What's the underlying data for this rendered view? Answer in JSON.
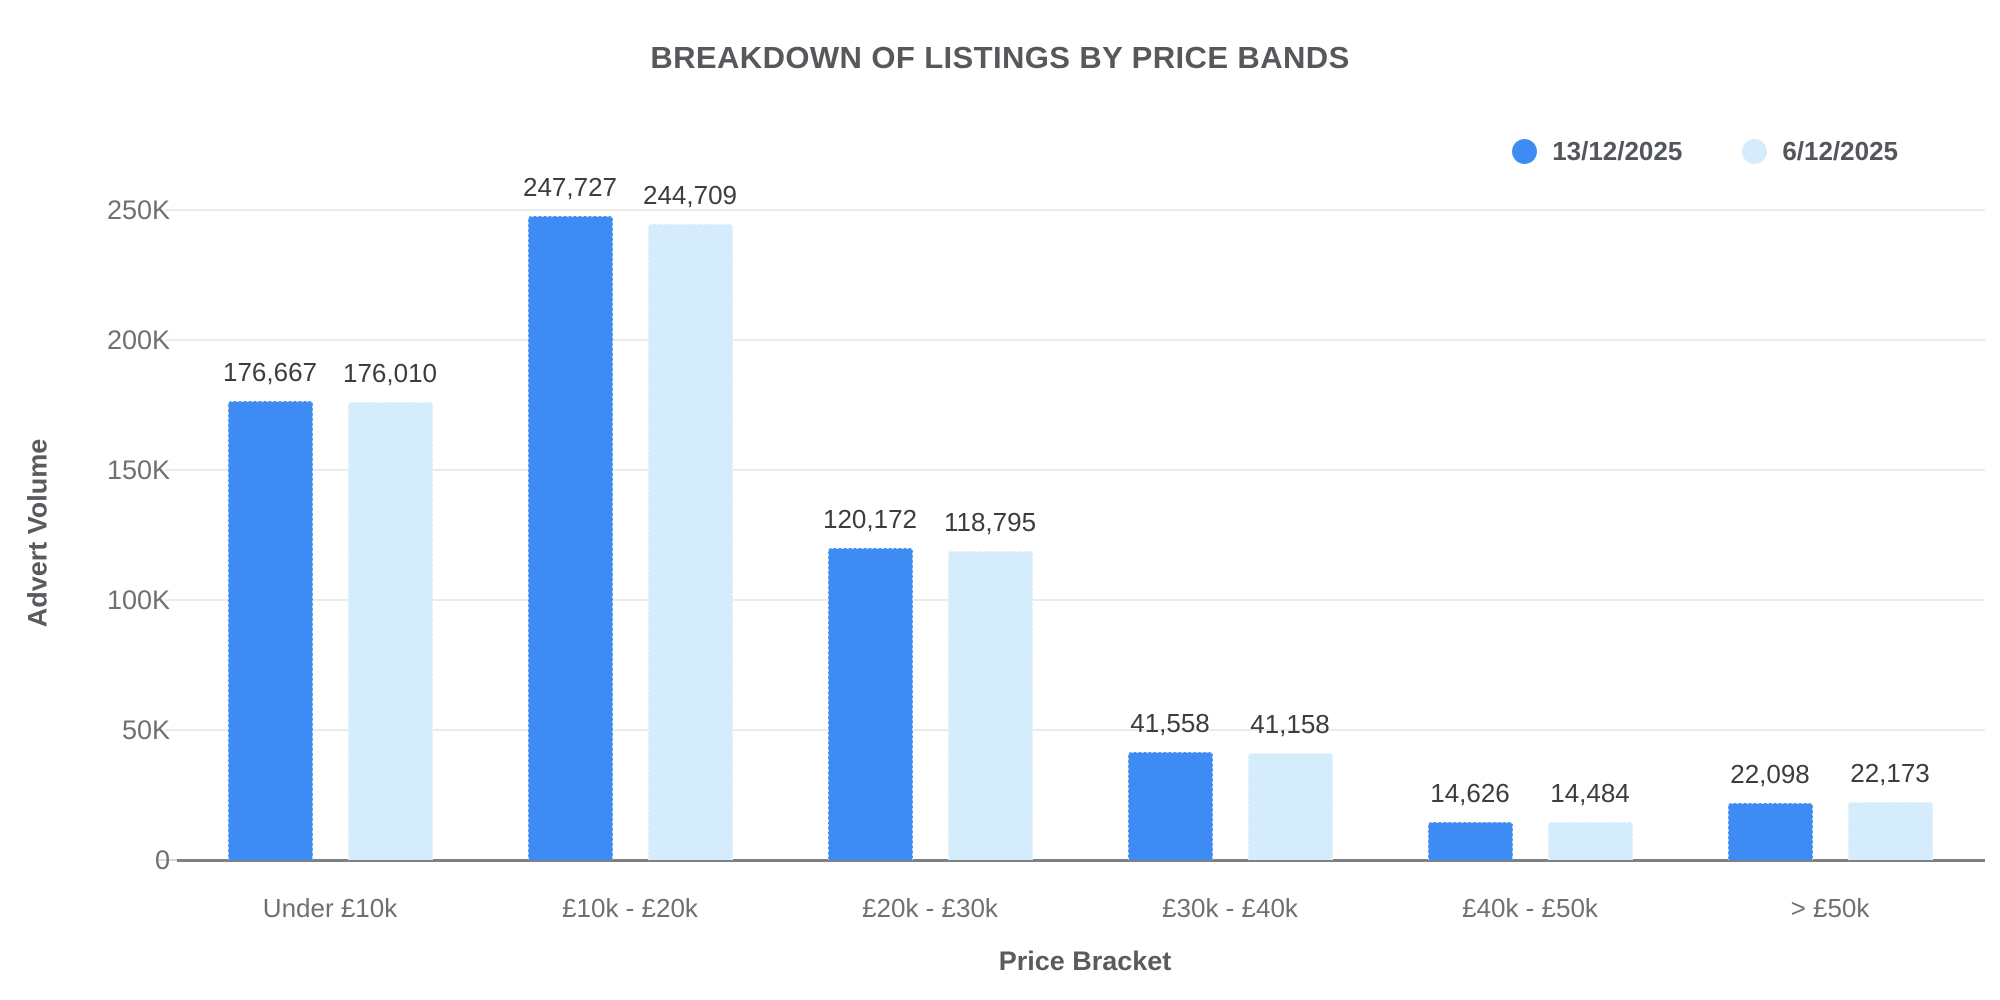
{
  "title": "BREAKDOWN OF LISTINGS BY PRICE BANDS",
  "legend": {
    "items": [
      {
        "label": "13/12/2025",
        "color": "#3d8bf3"
      },
      {
        "label": "6/12/2025",
        "color": "#d4ecfc"
      }
    ]
  },
  "axes": {
    "x_title": "Price Bracket",
    "y_title": "Advert Volume"
  },
  "chart_data": {
    "type": "bar",
    "title": "BREAKDOWN OF LISTINGS BY PRICE BANDS",
    "xlabel": "Price Bracket",
    "ylabel": "Advert Volume",
    "categories": [
      "Under £10k",
      "£10k - £20k",
      "£20k - £30k",
      "£30k - £40k",
      "£40k - £50k",
      "> £50k"
    ],
    "series": [
      {
        "name": "13/12/2025",
        "color": "#3d8bf3",
        "values": [
          176667,
          247727,
          120172,
          41558,
          14626,
          22098
        ],
        "value_labels": [
          "176,667",
          "247,727",
          "120,172",
          "41,558",
          "14,626",
          "22,098"
        ]
      },
      {
        "name": "6/12/2025",
        "color": "#d4ecfc",
        "values": [
          176010,
          244709,
          118795,
          41158,
          14484,
          22173
        ],
        "value_labels": [
          "176,010",
          "244,709",
          "118,795",
          "41,158",
          "14,484",
          "22,173"
        ]
      }
    ],
    "y_ticks": [
      {
        "label": "0",
        "value": 0
      },
      {
        "label": "50K",
        "value": 50000
      },
      {
        "label": "100K",
        "value": 100000
      },
      {
        "label": "150K",
        "value": 150000
      },
      {
        "label": "200K",
        "value": 200000
      },
      {
        "label": "250K",
        "value": 250000
      }
    ],
    "ylim": [
      0,
      270000
    ],
    "grid": true,
    "legend_position": "top-right"
  },
  "colors": {
    "series_1": "#3d8bf3",
    "series_2": "#d4ecfc",
    "gridline": "#e9ebed",
    "axis_line": "#7e8084",
    "title_text": "#57585b",
    "tick_text": "#6e7073",
    "value_text": "#3c3d3f"
  }
}
